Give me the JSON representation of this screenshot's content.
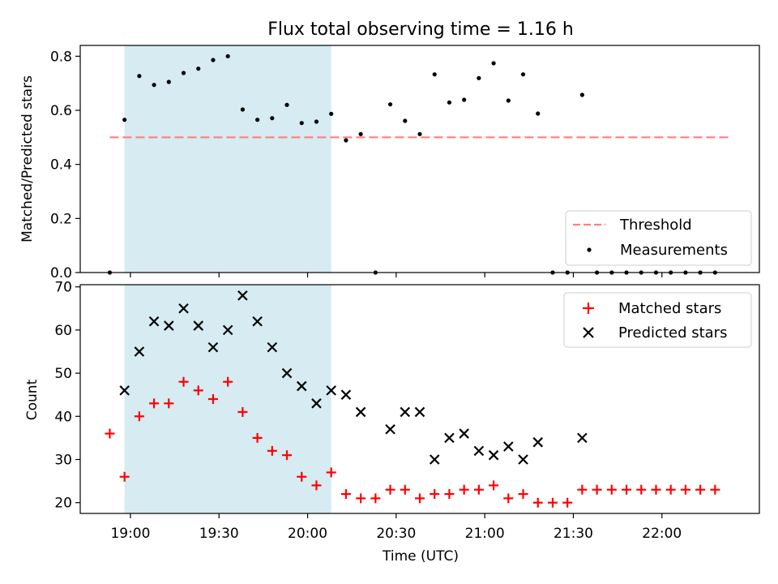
{
  "title": "Flux total observing time = 1.16 h",
  "colors": {
    "shade": "#add8e6",
    "threshold": "#ff7f7f",
    "matched": "#ff0000",
    "predicted": "#000000",
    "measurement": "#000000"
  },
  "chart_data": [
    {
      "type": "scatter",
      "ylabel": "Matched/Predicted stars",
      "ylim": [
        0,
        0.84
      ],
      "yticks": [
        "0.0",
        "0.2",
        "0.4",
        "0.6",
        "0.8"
      ],
      "ytick_values": [
        0.0,
        0.2,
        0.4,
        0.6,
        0.8
      ],
      "shaded_span": [
        "18:58",
        "20:08"
      ],
      "threshold": {
        "value": 0.5,
        "from": "18:53",
        "to": "22:23"
      },
      "legend": {
        "position": "lower right",
        "threshold_label": "Threshold",
        "measurements_label": "Measurements"
      },
      "series": [
        {
          "name": "Measurements",
          "x": [
            "18:53",
            "18:58",
            "19:03",
            "19:08",
            "19:13",
            "19:18",
            "19:23",
            "19:28",
            "19:33",
            "19:38",
            "19:43",
            "19:48",
            "19:53",
            "19:58",
            "20:03",
            "20:08",
            "20:13",
            "20:18",
            "20:23",
            "20:28",
            "20:33",
            "20:38",
            "20:43",
            "20:48",
            "20:53",
            "20:58",
            "21:03",
            "21:08",
            "21:13",
            "21:18",
            "21:23",
            "21:28",
            "21:33",
            "21:38",
            "21:43",
            "21:48",
            "21:53",
            "21:58",
            "22:03",
            "22:08",
            "22:13",
            "22:18"
          ],
          "y": [
            0.0,
            0.565,
            0.727,
            0.694,
            0.705,
            0.738,
            0.754,
            0.786,
            0.8,
            0.603,
            0.565,
            0.571,
            0.62,
            0.553,
            0.558,
            0.587,
            0.489,
            0.512,
            0.0,
            0.622,
            0.561,
            0.512,
            0.733,
            0.629,
            0.639,
            0.719,
            0.774,
            0.636,
            0.733,
            0.588,
            0.0,
            0.0,
            0.657,
            0.0,
            0.0,
            0.0,
            0.0,
            0.0,
            0.0,
            0.0,
            0.0,
            0.0
          ]
        }
      ]
    },
    {
      "type": "scatter",
      "xlabel": "Time (UTC)",
      "ylabel": "Count",
      "ylim": [
        17.5,
        70.5
      ],
      "yticks": [
        "20",
        "30",
        "40",
        "50",
        "60",
        "70"
      ],
      "ytick_values": [
        20,
        30,
        40,
        50,
        60,
        70
      ],
      "xticks": [
        "19:00",
        "19:30",
        "20:00",
        "20:30",
        "21:00",
        "21:30",
        "22:00"
      ],
      "xlim": [
        "18:43",
        "22:33"
      ],
      "shaded_span": [
        "18:58",
        "20:08"
      ],
      "legend": {
        "position": "upper right"
      },
      "series": [
        {
          "name": "Matched stars",
          "x": [
            "18:53",
            "18:58",
            "19:03",
            "19:08",
            "19:13",
            "19:18",
            "19:23",
            "19:28",
            "19:33",
            "19:38",
            "19:43",
            "19:48",
            "19:53",
            "19:58",
            "20:03",
            "20:08",
            "20:13",
            "20:18",
            "20:23",
            "20:28",
            "20:33",
            "20:38",
            "20:43",
            "20:48",
            "20:53",
            "20:58",
            "21:03",
            "21:08",
            "21:13",
            "21:18",
            "21:23",
            "21:28",
            "21:33",
            "21:38",
            "21:43",
            "21:48",
            "21:53",
            "21:58",
            "22:03",
            "22:08",
            "22:13",
            "22:18"
          ],
          "y": [
            36,
            26,
            40,
            43,
            43,
            48,
            46,
            44,
            48,
            41,
            35,
            32,
            31,
            26,
            24,
            27,
            22,
            21,
            21,
            23,
            23,
            21,
            22,
            22,
            23,
            23,
            24,
            21,
            22,
            20,
            20,
            20,
            23,
            23,
            23,
            23,
            23,
            23,
            23,
            23,
            23,
            23
          ]
        },
        {
          "name": "Predicted stars",
          "x": [
            "18:58",
            "19:03",
            "19:08",
            "19:13",
            "19:18",
            "19:23",
            "19:28",
            "19:33",
            "19:38",
            "19:43",
            "19:48",
            "19:53",
            "19:58",
            "20:03",
            "20:08",
            "20:13",
            "20:18",
            "20:28",
            "20:33",
            "20:38",
            "20:43",
            "20:48",
            "20:53",
            "20:58",
            "21:03",
            "21:08",
            "21:13",
            "21:18",
            "21:33"
          ],
          "y": [
            46,
            55,
            62,
            61,
            65,
            61,
            56,
            60,
            68,
            62,
            56,
            50,
            47,
            43,
            46,
            45,
            41,
            37,
            41,
            41,
            30,
            35,
            36,
            32,
            31,
            33,
            30,
            34,
            35
          ]
        }
      ]
    }
  ]
}
